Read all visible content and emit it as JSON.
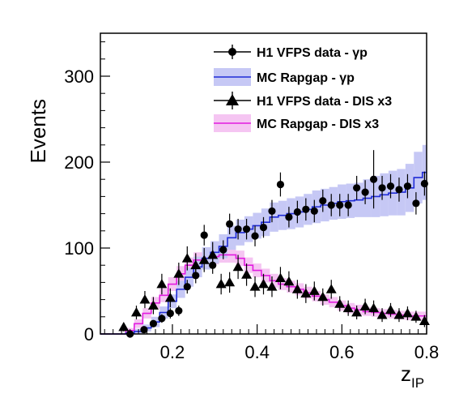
{
  "chart_data": {
    "type": "histogram",
    "xlabel_main": "z",
    "xlabel_sub": "IP",
    "ylabel": "Events",
    "xlim": [
      0.03,
      0.8
    ],
    "ylim": [
      0,
      350
    ],
    "x_ticks": [
      0.2,
      0.4,
      0.6,
      0.8
    ],
    "y_ticks": [
      0,
      100,
      200,
      300
    ],
    "legend_position": "top-right",
    "legend": [
      {
        "label": "H1 VFPS data - γp",
        "marker": "circle"
      },
      {
        "label": "MC Rapgap - γp",
        "marker": "band",
        "line_color": "#1f2bd6",
        "band_color": "#c6c8f5"
      },
      {
        "label": "H1 VFPS data - DIS x3",
        "marker": "triangle"
      },
      {
        "label": "MC Rapgap - DIS x3",
        "marker": "band",
        "line_color": "#e21be0",
        "band_color": "#f5c5f2"
      }
    ],
    "bin_edges": [
      0.03,
      0.06,
      0.09,
      0.11,
      0.13,
      0.15,
      0.17,
      0.19,
      0.21,
      0.23,
      0.25,
      0.27,
      0.29,
      0.31,
      0.33,
      0.35,
      0.37,
      0.39,
      0.41,
      0.43,
      0.45,
      0.47,
      0.49,
      0.51,
      0.53,
      0.55,
      0.57,
      0.59,
      0.61,
      0.63,
      0.65,
      0.67,
      0.69,
      0.71,
      0.73,
      0.75,
      0.77,
      0.79,
      0.8
    ],
    "mc_gp": [
      0,
      0,
      1,
      3,
      7,
      14,
      25,
      38,
      52,
      66,
      78,
      88,
      95,
      102,
      112,
      118,
      122,
      126,
      130,
      136,
      138,
      140,
      142,
      145,
      148,
      150,
      152,
      154,
      155,
      156,
      158,
      160,
      162,
      164,
      165,
      170,
      182,
      188
    ],
    "mc_gp_err": [
      0,
      0,
      2,
      3,
      4,
      6,
      7,
      8,
      10,
      11,
      12,
      13,
      13,
      14,
      14,
      15,
      15,
      15,
      16,
      17,
      17,
      18,
      18,
      18,
      19,
      19,
      19,
      20,
      20,
      20,
      22,
      24,
      25,
      26,
      27,
      28,
      30,
      32
    ],
    "mc_dis": [
      0,
      0,
      4,
      12,
      24,
      36,
      45,
      58,
      70,
      80,
      86,
      88,
      90,
      92,
      92,
      88,
      80,
      74,
      68,
      62,
      58,
      55,
      52,
      48,
      44,
      40,
      37,
      33,
      30,
      28,
      26,
      25,
      24,
      23,
      22,
      21,
      21,
      21
    ],
    "mc_dis_err": [
      0,
      0,
      3,
      5,
      6,
      7,
      8,
      8,
      9,
      9,
      9,
      9,
      9,
      9,
      9,
      9,
      9,
      8,
      8,
      8,
      7,
      7,
      7,
      7,
      6,
      6,
      6,
      6,
      6,
      6,
      5,
      5,
      5,
      5,
      5,
      5,
      5,
      5
    ],
    "data_gp": [
      {
        "x": 0.1,
        "y": 0,
        "err": 0
      },
      {
        "x": 0.133,
        "y": 5,
        "err": 3
      },
      {
        "x": 0.155,
        "y": 12,
        "err": 4
      },
      {
        "x": 0.175,
        "y": 18,
        "err": 5
      },
      {
        "x": 0.195,
        "y": 24,
        "err": 6
      },
      {
        "x": 0.215,
        "y": 27,
        "err": 6
      },
      {
        "x": 0.235,
        "y": 55,
        "err": 8
      },
      {
        "x": 0.255,
        "y": 68,
        "err": 9
      },
      {
        "x": 0.275,
        "y": 115,
        "err": 12
      },
      {
        "x": 0.295,
        "y": 80,
        "err": 10
      },
      {
        "x": 0.32,
        "y": 98,
        "err": 11
      },
      {
        "x": 0.335,
        "y": 128,
        "err": 12
      },
      {
        "x": 0.355,
        "y": 122,
        "err": 12
      },
      {
        "x": 0.375,
        "y": 122,
        "err": 12
      },
      {
        "x": 0.395,
        "y": 114,
        "err": 12
      },
      {
        "x": 0.415,
        "y": 124,
        "err": 12
      },
      {
        "x": 0.435,
        "y": 143,
        "err": 13
      },
      {
        "x": 0.455,
        "y": 174,
        "err": 14
      },
      {
        "x": 0.475,
        "y": 136,
        "err": 12
      },
      {
        "x": 0.495,
        "y": 142,
        "err": 13
      },
      {
        "x": 0.515,
        "y": 145,
        "err": 13
      },
      {
        "x": 0.535,
        "y": 143,
        "err": 13
      },
      {
        "x": 0.555,
        "y": 155,
        "err": 13
      },
      {
        "x": 0.575,
        "y": 150,
        "err": 13
      },
      {
        "x": 0.595,
        "y": 150,
        "err": 13
      },
      {
        "x": 0.615,
        "y": 150,
        "err": 13
      },
      {
        "x": 0.635,
        "y": 170,
        "err": 14
      },
      {
        "x": 0.655,
        "y": 165,
        "err": 14
      },
      {
        "x": 0.675,
        "y": 180,
        "err": 34
      },
      {
        "x": 0.695,
        "y": 170,
        "err": 14
      },
      {
        "x": 0.715,
        "y": 172,
        "err": 14
      },
      {
        "x": 0.735,
        "y": 168,
        "err": 14
      },
      {
        "x": 0.755,
        "y": 172,
        "err": 14
      },
      {
        "x": 0.775,
        "y": 152,
        "err": 13
      },
      {
        "x": 0.795,
        "y": 175,
        "err": 14
      }
    ],
    "data_dis": [
      {
        "x": 0.085,
        "y": 8,
        "err": 5
      },
      {
        "x": 0.115,
        "y": 25,
        "err": 8
      },
      {
        "x": 0.135,
        "y": 40,
        "err": 10
      },
      {
        "x": 0.155,
        "y": 33,
        "err": 10
      },
      {
        "x": 0.175,
        "y": 58,
        "err": 12
      },
      {
        "x": 0.195,
        "y": 42,
        "err": 11
      },
      {
        "x": 0.215,
        "y": 70,
        "err": 13
      },
      {
        "x": 0.235,
        "y": 88,
        "err": 14
      },
      {
        "x": 0.255,
        "y": 80,
        "err": 14
      },
      {
        "x": 0.275,
        "y": 86,
        "err": 14
      },
      {
        "x": 0.295,
        "y": 92,
        "err": 15
      },
      {
        "x": 0.315,
        "y": 58,
        "err": 12
      },
      {
        "x": 0.335,
        "y": 60,
        "err": 12
      },
      {
        "x": 0.355,
        "y": 78,
        "err": 14
      },
      {
        "x": 0.375,
        "y": 69,
        "err": 13
      },
      {
        "x": 0.395,
        "y": 55,
        "err": 12
      },
      {
        "x": 0.415,
        "y": 58,
        "err": 12
      },
      {
        "x": 0.435,
        "y": 55,
        "err": 12
      },
      {
        "x": 0.455,
        "y": 65,
        "err": 13
      },
      {
        "x": 0.475,
        "y": 61,
        "err": 12
      },
      {
        "x": 0.495,
        "y": 52,
        "err": 11
      },
      {
        "x": 0.515,
        "y": 47,
        "err": 11
      },
      {
        "x": 0.535,
        "y": 50,
        "err": 11
      },
      {
        "x": 0.555,
        "y": 43,
        "err": 10
      },
      {
        "x": 0.575,
        "y": 52,
        "err": 11
      },
      {
        "x": 0.595,
        "y": 35,
        "err": 9
      },
      {
        "x": 0.615,
        "y": 30,
        "err": 9
      },
      {
        "x": 0.635,
        "y": 25,
        "err": 8
      },
      {
        "x": 0.655,
        "y": 32,
        "err": 9
      },
      {
        "x": 0.675,
        "y": 30,
        "err": 9
      },
      {
        "x": 0.695,
        "y": 22,
        "err": 8
      },
      {
        "x": 0.715,
        "y": 28,
        "err": 8
      },
      {
        "x": 0.735,
        "y": 22,
        "err": 8
      },
      {
        "x": 0.755,
        "y": 24,
        "err": 8
      },
      {
        "x": 0.775,
        "y": 20,
        "err": 7
      },
      {
        "x": 0.795,
        "y": 15,
        "err": 7
      }
    ]
  },
  "colors": {
    "gp_line": "#1f2bd6",
    "gp_band": "#c6c8f5",
    "dis_line": "#e21be0",
    "dis_band": "#f5c5f2",
    "data": "#000000"
  }
}
